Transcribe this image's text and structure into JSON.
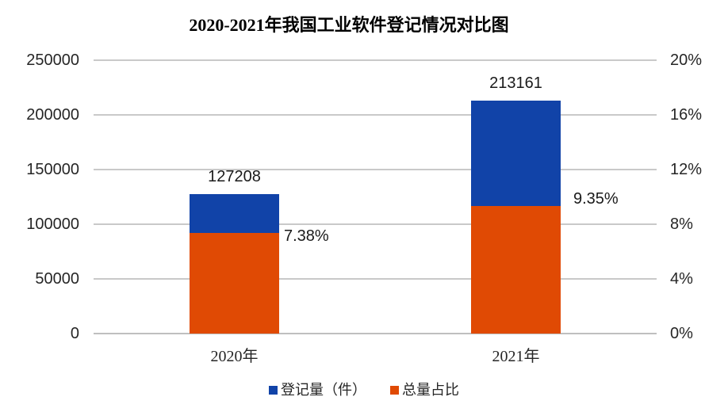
{
  "title": "2020-2021年我国工业软件登记情况对比图",
  "colors": {
    "registration_blue": "#1143A8",
    "share_orange": "#E04A04",
    "gridline": "#C9C9C9",
    "baseline": "#BFBFBF",
    "axis_text": "#262626"
  },
  "legend": {
    "items": [
      {
        "label": "登记量（件）",
        "color": "#1143A8"
      },
      {
        "label": "总量占比",
        "color": "#E04A04"
      }
    ]
  },
  "chart_data": {
    "type": "bar",
    "title": "2020-2021年我国工业软件登记情况对比图",
    "categories": [
      "2020年",
      "2021年"
    ],
    "series": [
      {
        "name": "登记量（件）",
        "axis": "left",
        "color": "#1143A8",
        "values": [
          127208,
          213161
        ],
        "data_labels": [
          "127208",
          "213161"
        ]
      },
      {
        "name": "总量占比",
        "axis": "right",
        "color": "#E04A04",
        "values": [
          7.38,
          9.35
        ],
        "data_labels": [
          "7.38%",
          "9.35%"
        ]
      }
    ],
    "left_axis": {
      "min": 0,
      "max": 250000,
      "step": 50000,
      "tick_labels": [
        "0",
        "50000",
        "100000",
        "150000",
        "200000",
        "250000"
      ]
    },
    "right_axis": {
      "min": 0,
      "max": 20,
      "step": 4,
      "tick_labels": [
        "0%",
        "4%",
        "8%",
        "12%",
        "16%",
        "20%"
      ]
    },
    "grid": true,
    "legend_position": "bottom",
    "bar_style": "overlapped"
  }
}
